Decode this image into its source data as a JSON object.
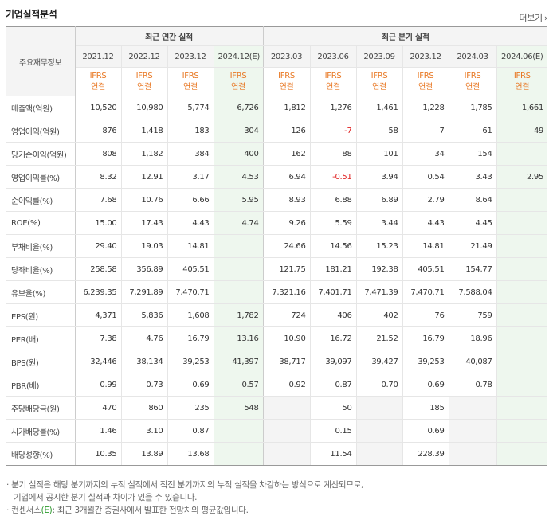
{
  "header": {
    "title": "기업실적분석",
    "more_label": "더보기"
  },
  "table": {
    "row_header": "주요재무정보",
    "groups": {
      "annual": "최근 연간 실적",
      "quarter": "최근 분기 실적"
    },
    "periods": [
      "2021.12",
      "2022.12",
      "2023.12",
      "2024.12(E)",
      "2023.03",
      "2023.06",
      "2023.09",
      "2023.12",
      "2024.03",
      "2024.06(E)"
    ],
    "ifrs": {
      "line1": "IFRS",
      "line2": "연결"
    },
    "rows": [
      {
        "label": "매출액(억원)",
        "values": [
          "10,520",
          "10,980",
          "5,774",
          "6,726",
          "1,812",
          "1,276",
          "1,461",
          "1,228",
          "1,785",
          "1,661"
        ]
      },
      {
        "label": "영업이익(억원)",
        "values": [
          "876",
          "1,418",
          "183",
          "304",
          "126",
          "-7",
          "58",
          "7",
          "61",
          "49"
        ]
      },
      {
        "label": "당기순이익(억원)",
        "values": [
          "808",
          "1,182",
          "384",
          "400",
          "162",
          "88",
          "101",
          "34",
          "154",
          ""
        ]
      },
      {
        "label": "영업이익률(%)",
        "values": [
          "8.32",
          "12.91",
          "3.17",
          "4.53",
          "6.94",
          "-0.51",
          "3.94",
          "0.54",
          "3.43",
          "2.95"
        ]
      },
      {
        "label": "순이익률(%)",
        "values": [
          "7.68",
          "10.76",
          "6.66",
          "5.95",
          "8.93",
          "6.88",
          "6.89",
          "2.79",
          "8.64",
          ""
        ]
      },
      {
        "label": "ROE(%)",
        "values": [
          "15.00",
          "17.43",
          "4.43",
          "4.74",
          "9.26",
          "5.59",
          "3.44",
          "4.43",
          "4.45",
          ""
        ]
      },
      {
        "label": "부채비율(%)",
        "values": [
          "29.40",
          "19.03",
          "14.81",
          "",
          "24.66",
          "14.56",
          "15.23",
          "14.81",
          "21.49",
          ""
        ]
      },
      {
        "label": "당좌비율(%)",
        "values": [
          "258.58",
          "356.89",
          "405.51",
          "",
          "121.75",
          "181.21",
          "192.38",
          "405.51",
          "154.77",
          ""
        ]
      },
      {
        "label": "유보율(%)",
        "values": [
          "6,239.35",
          "7,291.89",
          "7,470.71",
          "",
          "7,321.16",
          "7,401.71",
          "7,471.39",
          "7,470.71",
          "7,588.04",
          ""
        ]
      },
      {
        "label": "EPS(원)",
        "values": [
          "4,371",
          "5,836",
          "1,608",
          "1,782",
          "724",
          "406",
          "402",
          "76",
          "759",
          ""
        ]
      },
      {
        "label": "PER(배)",
        "values": [
          "7.38",
          "4.76",
          "16.79",
          "13.16",
          "10.90",
          "16.72",
          "21.52",
          "16.79",
          "18.96",
          ""
        ]
      },
      {
        "label": "BPS(원)",
        "values": [
          "32,446",
          "38,134",
          "39,253",
          "41,397",
          "38,717",
          "39,097",
          "39,427",
          "39,253",
          "40,087",
          ""
        ]
      },
      {
        "label": "PBR(배)",
        "values": [
          "0.99",
          "0.73",
          "0.69",
          "0.57",
          "0.92",
          "0.87",
          "0.70",
          "0.69",
          "0.78",
          ""
        ]
      },
      {
        "label": "주당배당금(원)",
        "values": [
          "470",
          "860",
          "235",
          "548",
          "",
          "50",
          "",
          "185",
          "",
          ""
        ]
      },
      {
        "label": "시가배당률(%)",
        "values": [
          "1.46",
          "3.10",
          "0.87",
          "",
          "",
          "0.15",
          "",
          "0.69",
          "",
          ""
        ]
      },
      {
        "label": "배당성향(%)",
        "values": [
          "10.35",
          "13.89",
          "13.68",
          "",
          "",
          "11.54",
          "",
          "228.39",
          "",
          ""
        ]
      }
    ]
  },
  "notes": {
    "line1": "분기 실적은 해당 분기까지의 누적 실적에서 직전 분기까지의 누적 실적을 차감하는 방식으로 계산되므로,",
    "line2": "기업에서 공시한 분기 실적과 차이가 있을 수 있습니다.",
    "line3_prefix": "컨센서스",
    "line3_mark": "(E)",
    "line3_suffix": ": 최근 3개월간 증권사에서 발표한 전망치의 평균값입니다."
  },
  "colors": {
    "ifrs": "#e87722",
    "negative": "#e02020",
    "estimate_bg": "#eef7ee",
    "estimate_mark": "#2c9a2c"
  }
}
